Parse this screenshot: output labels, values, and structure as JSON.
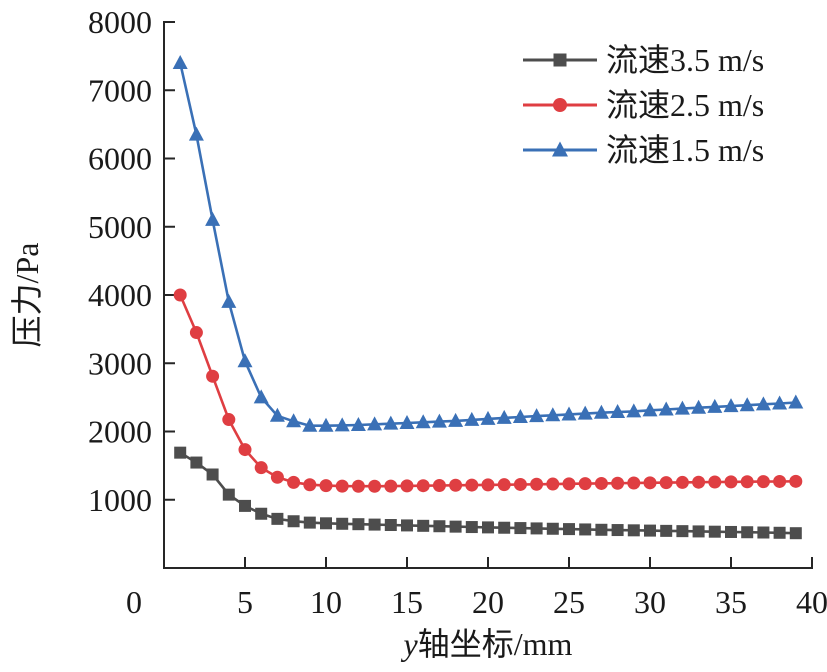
{
  "figure": {
    "background": "#ffffff",
    "axis_color": "#262626",
    "text_color": "#1a1a1a"
  },
  "chart_data": {
    "type": "line",
    "title": "",
    "xlabel": "y轴坐标/mm",
    "ylabel": "压力/Pa",
    "xlim": [
      0,
      40
    ],
    "ylim": [
      0,
      8000
    ],
    "x_ticks": [
      0,
      5,
      10,
      15,
      20,
      25,
      30,
      35,
      40
    ],
    "y_ticks": [
      1000,
      2000,
      3000,
      4000,
      5000,
      6000,
      7000,
      8000
    ],
    "grid": false,
    "legend_position": "top-right",
    "x": [
      1,
      2,
      3,
      4,
      5,
      6,
      7,
      8,
      9,
      10,
      11,
      12,
      13,
      14,
      15,
      16,
      17,
      18,
      19,
      20,
      21,
      22,
      23,
      24,
      25,
      26,
      27,
      28,
      29,
      30,
      31,
      32,
      33,
      34,
      35,
      36,
      37,
      38,
      39
    ],
    "series": [
      {
        "name": "流速3.5 m/s",
        "color": "#4d4d4d",
        "marker": "square",
        "values": [
          1690,
          1545,
          1370,
          1075,
          910,
          795,
          720,
          685,
          665,
          655,
          648,
          642,
          636,
          630,
          624,
          618,
          612,
          606,
          600,
          595,
          590,
          585,
          580,
          575,
          570,
          565,
          560,
          556,
          552,
          548,
          544,
          540,
          536,
          532,
          528,
          524,
          520,
          516,
          510
        ]
      },
      {
        "name": "流速2.5 m/s",
        "color": "#df3e42",
        "marker": "circle",
        "values": [
          4000,
          3450,
          2810,
          2175,
          1735,
          1470,
          1330,
          1255,
          1220,
          1207,
          1200,
          1198,
          1198,
          1200,
          1203,
          1206,
          1209,
          1212,
          1215,
          1218,
          1221,
          1224,
          1227,
          1230,
          1233,
          1236,
          1239,
          1242,
          1245,
          1248,
          1251,
          1254,
          1257,
          1260,
          1262,
          1264,
          1266,
          1268,
          1270
        ]
      },
      {
        "name": "流速1.5 m/s",
        "color": "#3a70b6",
        "marker": "triangle",
        "values": [
          7400,
          6350,
          5100,
          3900,
          3030,
          2500,
          2230,
          2150,
          2085,
          2085,
          2090,
          2095,
          2105,
          2115,
          2125,
          2135,
          2145,
          2155,
          2170,
          2185,
          2200,
          2212,
          2225,
          2238,
          2250,
          2262,
          2275,
          2285,
          2295,
          2310,
          2322,
          2335,
          2348,
          2360,
          2372,
          2385,
          2398,
          2410,
          2425
        ]
      }
    ]
  }
}
